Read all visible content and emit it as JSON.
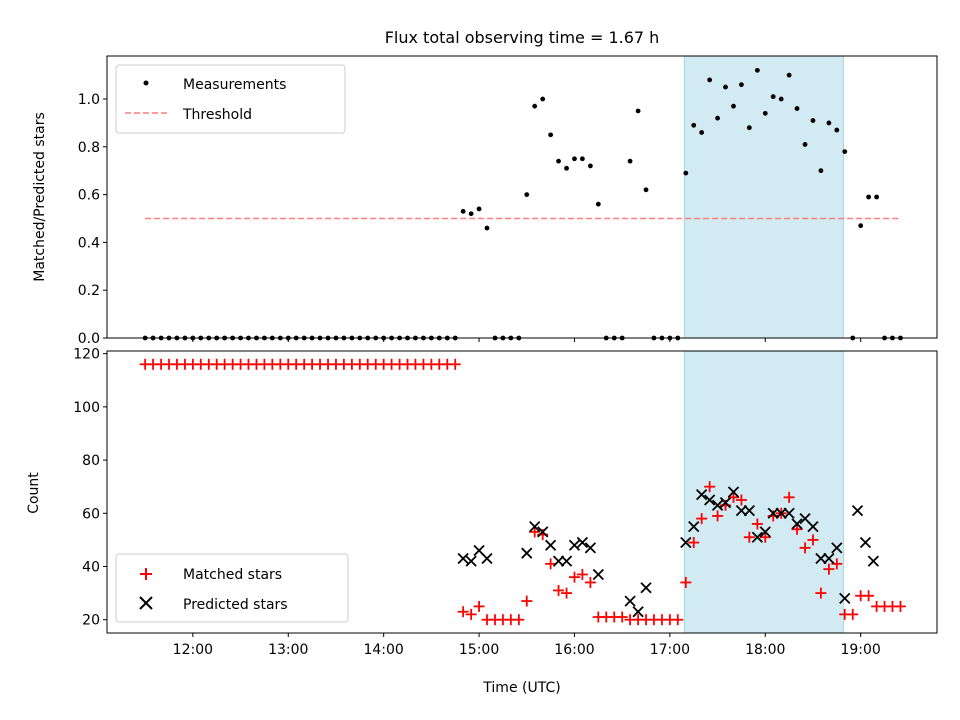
{
  "chart_data": [
    {
      "type": "scatter",
      "title": "Flux total observing time = 1.67 h",
      "xlabel": "",
      "ylabel": "Matched/Predicted stars",
      "xlim": [
        11.1,
        19.8
      ],
      "ylim": [
        0,
        1.18
      ],
      "yticks": [
        0.0,
        0.2,
        0.4,
        0.6,
        0.8,
        1.0
      ],
      "ytick_labels": [
        "0.0",
        "0.2",
        "0.4",
        "0.6",
        "0.8",
        "1.0"
      ],
      "xticks": [
        12,
        13,
        14,
        15,
        16,
        17,
        18,
        19
      ],
      "shaded_interval": [
        17.15,
        18.82
      ],
      "shade_color": "#add8e6",
      "legend": {
        "position": "top-left",
        "entries": [
          "Measurements",
          "Threshold"
        ]
      },
      "series": [
        {
          "name": "Measurements",
          "marker": "dot",
          "color": "#000000",
          "x": [
            11.5,
            11.583,
            11.667,
            11.75,
            11.833,
            11.917,
            12.0,
            12.083,
            12.167,
            12.25,
            12.333,
            12.417,
            12.5,
            12.583,
            12.667,
            12.75,
            12.833,
            12.917,
            13.0,
            13.083,
            13.167,
            13.25,
            13.333,
            13.417,
            13.5,
            13.583,
            13.667,
            13.75,
            13.833,
            13.917,
            14.0,
            14.083,
            14.167,
            14.25,
            14.333,
            14.417,
            14.5,
            14.583,
            14.667,
            14.75,
            14.833,
            14.917,
            15.0,
            15.083,
            15.167,
            15.25,
            15.333,
            15.417,
            15.5,
            15.583,
            15.667,
            15.75,
            15.833,
            15.917,
            16.0,
            16.083,
            16.167,
            16.25,
            16.333,
            16.417,
            16.5,
            16.583,
            16.667,
            16.75,
            16.833,
            16.917,
            17.0,
            17.083,
            17.167,
            17.25,
            17.333,
            17.417,
            17.5,
            17.583,
            17.667,
            17.75,
            17.833,
            17.917,
            18.0,
            18.083,
            18.167,
            18.25,
            18.333,
            18.417,
            18.5,
            18.583,
            18.667,
            18.75,
            18.833,
            18.917,
            19.0,
            19.083,
            19.167,
            19.25,
            19.333,
            19.417
          ],
          "y": [
            0,
            0,
            0,
            0,
            0,
            0,
            0,
            0,
            0,
            0,
            0,
            0,
            0,
            0,
            0,
            0,
            0,
            0,
            0,
            0,
            0,
            0,
            0,
            0,
            0,
            0,
            0,
            0,
            0,
            0,
            0,
            0,
            0,
            0,
            0,
            0,
            0,
            0,
            0,
            0,
            0.53,
            0.52,
            0.54,
            0.46,
            0,
            0,
            0,
            0,
            0.6,
            0.97,
            1.0,
            0.85,
            0.74,
            0.71,
            0.75,
            0.75,
            0.72,
            0.56,
            0,
            0,
            0,
            0.74,
            0.95,
            0.62,
            0,
            0,
            0,
            0,
            0.69,
            0.89,
            0.86,
            1.08,
            0.92,
            1.05,
            0.97,
            1.06,
            0.88,
            1.12,
            0.94,
            1.01,
            1.0,
            1.1,
            0.96,
            0.81,
            0.91,
            0.7,
            0.9,
            0.87,
            0.78,
            0,
            0.47,
            0.59,
            0.59,
            0,
            0,
            0
          ]
        },
        {
          "name": "Threshold",
          "style": "dashed",
          "color": "#ff7f7f",
          "x": [
            11.5,
            19.42
          ],
          "y": [
            0.5,
            0.5
          ]
        }
      ]
    },
    {
      "type": "scatter",
      "title": "",
      "xlabel": "Time (UTC)",
      "ylabel": "Count",
      "xlim": [
        11.1,
        19.8
      ],
      "ylim": [
        15,
        121
      ],
      "yticks": [
        20,
        40,
        60,
        80,
        100,
        120
      ],
      "ytick_labels": [
        "20",
        "40",
        "60",
        "80",
        "100",
        "120"
      ],
      "xticks": [
        12,
        13,
        14,
        15,
        16,
        17,
        18,
        19
      ],
      "xtick_labels": [
        "12:00",
        "13:00",
        "14:00",
        "15:00",
        "16:00",
        "17:00",
        "18:00",
        "19:00"
      ],
      "shaded_interval": [
        17.15,
        18.82
      ],
      "shade_color": "#add8e6",
      "legend": {
        "position": "bottom-left",
        "entries": [
          "Matched stars",
          "Predicted stars"
        ]
      },
      "series": [
        {
          "name": "Matched stars",
          "marker": "plus",
          "color": "#ff0000",
          "x": [
            11.5,
            11.583,
            11.667,
            11.75,
            11.833,
            11.917,
            12.0,
            12.083,
            12.167,
            12.25,
            12.333,
            12.417,
            12.5,
            12.583,
            12.667,
            12.75,
            12.833,
            12.917,
            13.0,
            13.083,
            13.167,
            13.25,
            13.333,
            13.417,
            13.5,
            13.583,
            13.667,
            13.75,
            13.833,
            13.917,
            14.0,
            14.083,
            14.167,
            14.25,
            14.333,
            14.417,
            14.5,
            14.583,
            14.667,
            14.75,
            14.833,
            14.917,
            15.0,
            15.083,
            15.167,
            15.25,
            15.333,
            15.417,
            15.5,
            15.583,
            15.667,
            15.75,
            15.833,
            15.917,
            16.0,
            16.083,
            16.167,
            16.25,
            16.333,
            16.417,
            16.5,
            16.583,
            16.667,
            16.75,
            16.833,
            16.917,
            17.0,
            17.083,
            17.167,
            17.25,
            17.333,
            17.417,
            17.5,
            17.583,
            17.667,
            17.75,
            17.833,
            17.917,
            18.0,
            18.083,
            18.167,
            18.25,
            18.333,
            18.417,
            18.5,
            18.583,
            18.667,
            18.75,
            18.833,
            18.917,
            19.0,
            19.083,
            19.167,
            19.25,
            19.333,
            19.417
          ],
          "y": [
            116,
            116,
            116,
            116,
            116,
            116,
            116,
            116,
            116,
            116,
            116,
            116,
            116,
            116,
            116,
            116,
            116,
            116,
            116,
            116,
            116,
            116,
            116,
            116,
            116,
            116,
            116,
            116,
            116,
            116,
            116,
            116,
            116,
            116,
            116,
            116,
            116,
            116,
            116,
            116,
            23,
            22,
            25,
            20,
            20,
            20,
            20,
            20,
            27,
            53,
            52,
            41,
            31,
            30,
            36,
            37,
            34,
            21,
            21,
            21,
            21,
            20,
            20,
            20,
            20,
            20,
            20,
            20,
            34,
            49,
            58,
            70,
            59,
            63,
            66,
            65,
            51,
            56,
            51,
            59,
            60,
            66,
            54,
            47,
            50,
            30,
            39,
            41,
            22,
            22,
            29,
            29,
            25,
            25,
            25,
            25
          ]
        },
        {
          "name": "Predicted stars",
          "marker": "x",
          "color": "#000000",
          "x": [
            14.833,
            14.917,
            15.0,
            15.083,
            15.5,
            15.583,
            15.667,
            15.75,
            15.833,
            15.917,
            16.0,
            16.083,
            16.167,
            16.25,
            16.583,
            16.667,
            16.75,
            17.167,
            17.25,
            17.333,
            17.417,
            17.5,
            17.583,
            17.667,
            17.75,
            17.833,
            17.917,
            18.0,
            18.083,
            18.167,
            18.25,
            18.333,
            18.417,
            18.5,
            18.583,
            18.667,
            18.75,
            18.833,
            18.967,
            19.05,
            19.133
          ],
          "y": [
            43,
            42,
            46,
            43,
            45,
            55,
            53,
            48,
            42,
            42,
            48,
            49,
            47,
            37,
            27,
            23,
            32,
            49,
            55,
            67,
            65,
            63,
            64,
            68,
            61,
            61,
            51,
            53,
            60,
            60,
            60,
            56,
            58,
            55,
            43,
            43,
            47,
            28,
            61,
            49,
            42
          ]
        }
      ]
    }
  ]
}
